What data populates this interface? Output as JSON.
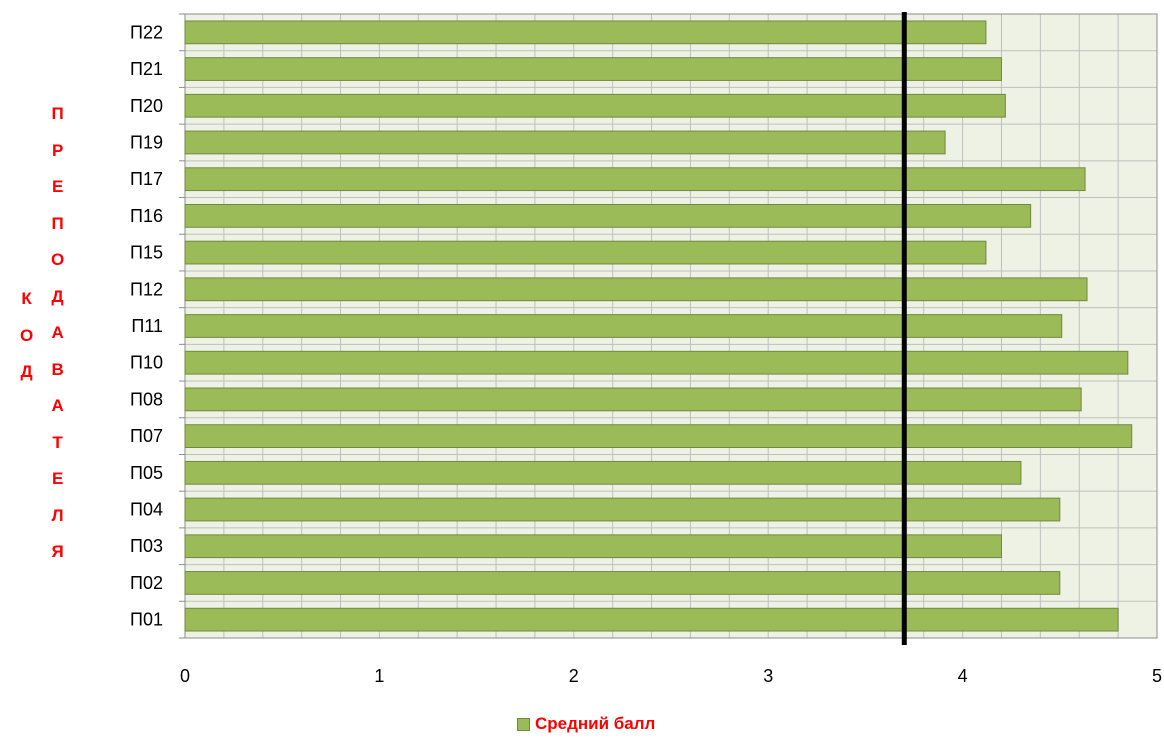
{
  "chart_data": {
    "type": "bar",
    "orientation": "horizontal",
    "categories": [
      "П01",
      "П02",
      "П03",
      "П04",
      "П05",
      "П07",
      "П08",
      "П10",
      "П11",
      "П12",
      "П15",
      "П16",
      "П17",
      "П19",
      "П20",
      "П21",
      "П22"
    ],
    "series": [
      {
        "name": "Средний балл",
        "color": "#9bbb59",
        "values": [
          4.8,
          4.5,
          4.2,
          4.5,
          4.3,
          4.87,
          4.61,
          4.85,
          4.51,
          4.64,
          4.12,
          4.35,
          4.63,
          3.91,
          4.22,
          4.2,
          4.12
        ]
      }
    ],
    "reference_line": 3.7,
    "xlim": [
      0,
      5
    ],
    "x_ticks": [
      "0",
      "1",
      "2",
      "3",
      "4",
      "5"
    ],
    "grid": true,
    "legend": "bottom",
    "ylabel_outer": "КОД",
    "ylabel_inner": "ПРЕПОДАВАТЕЛЯ"
  }
}
